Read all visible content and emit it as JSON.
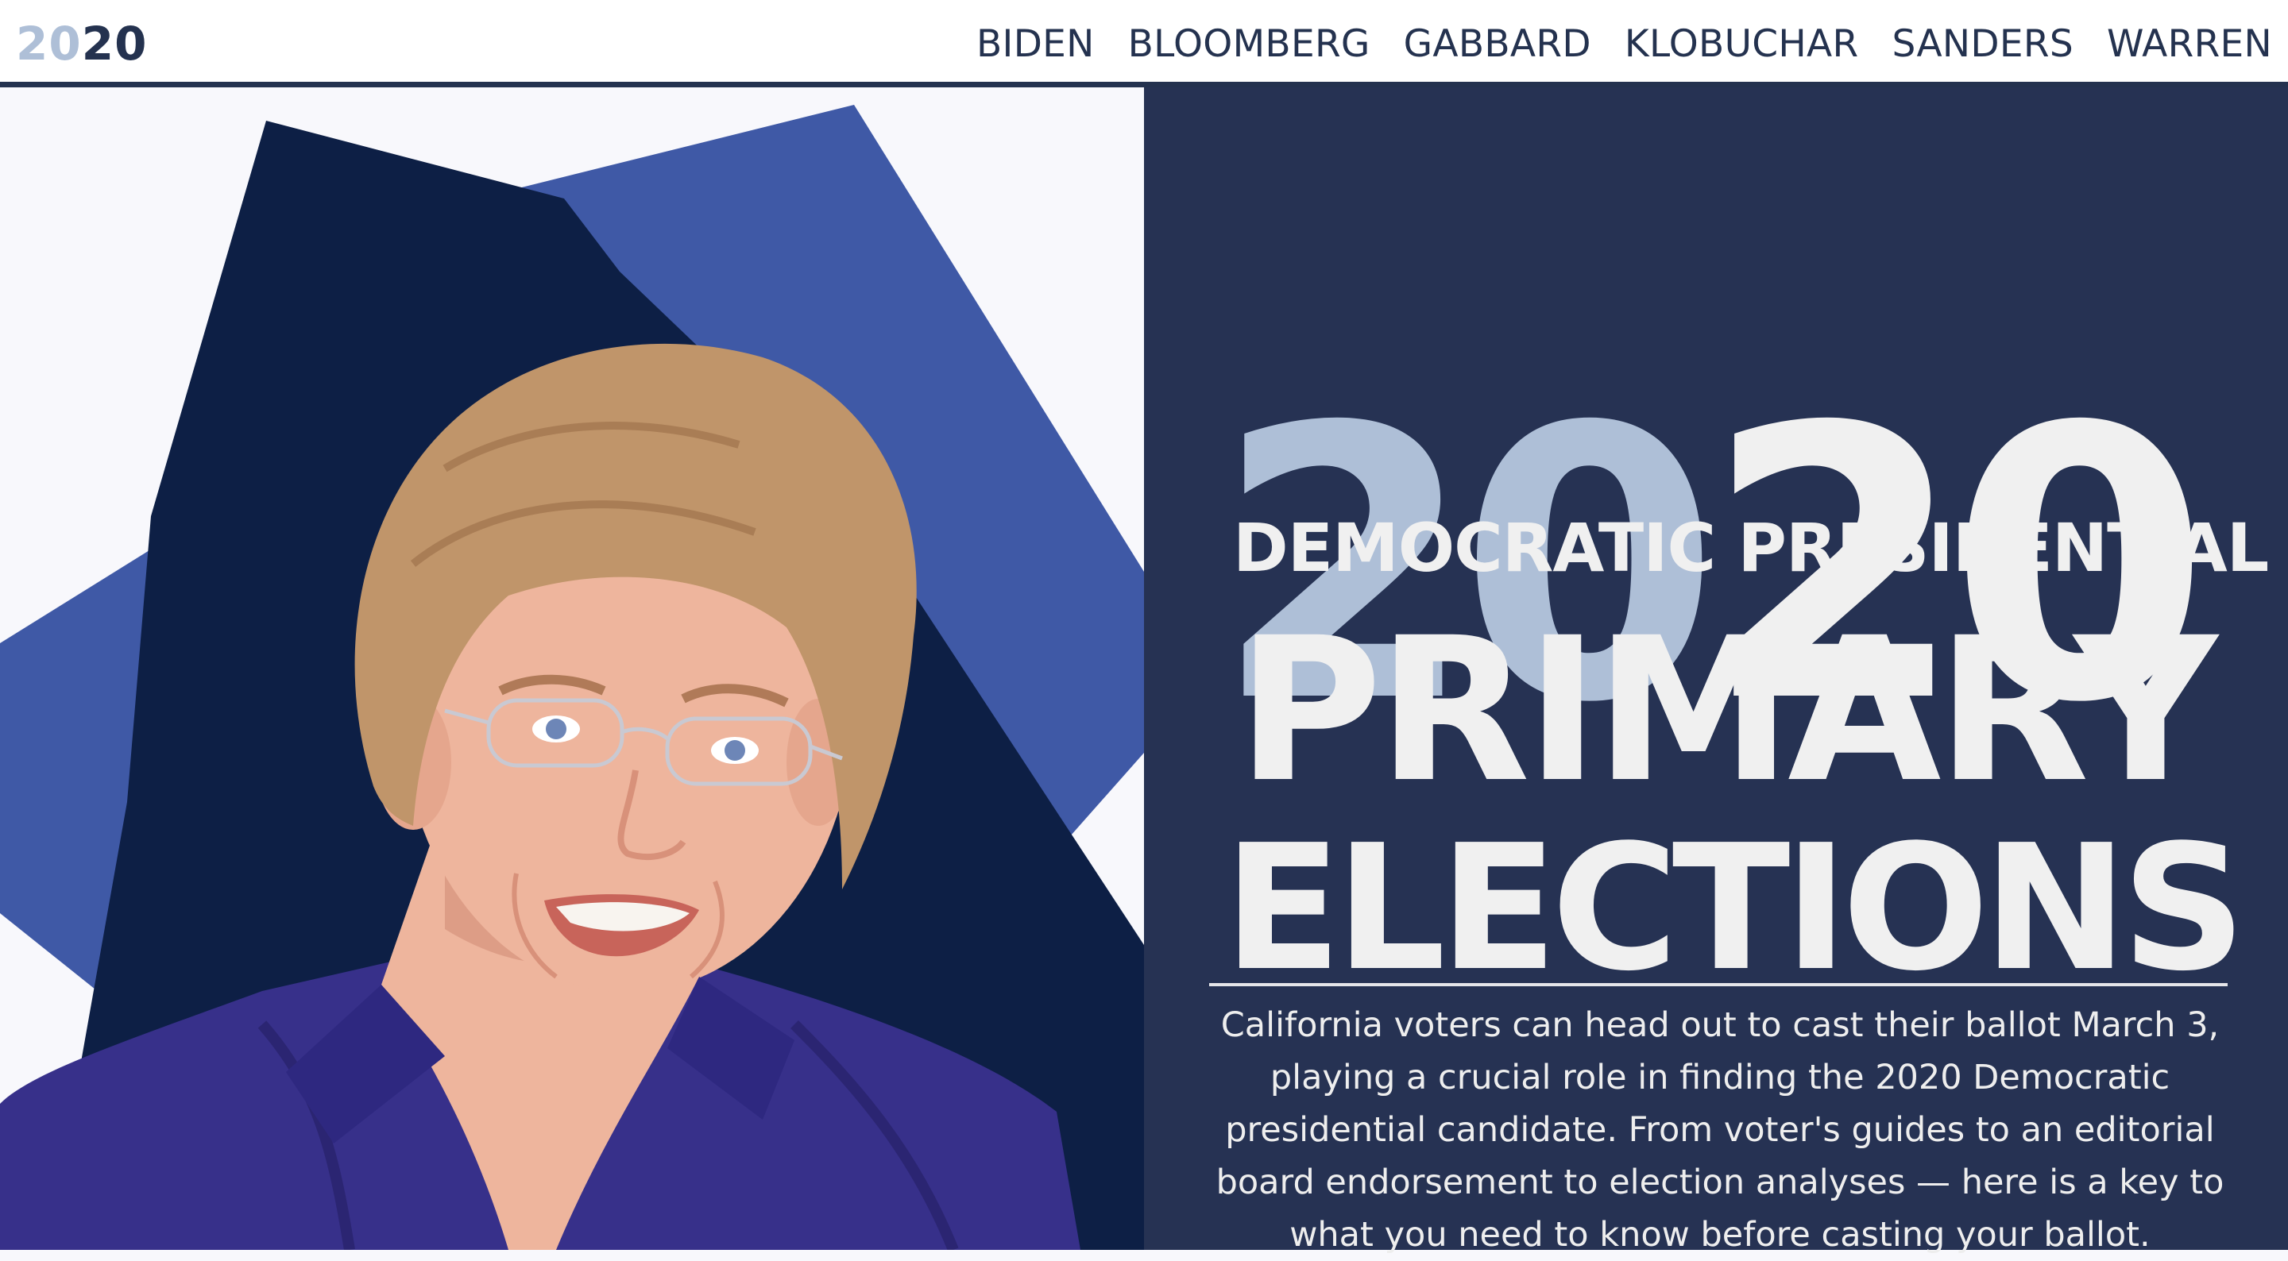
{
  "brand": {
    "logo_part1": "20",
    "logo_part2": "20"
  },
  "nav": {
    "items": [
      "BIDEN",
      "BLOOMBERG",
      "GABBARD",
      "KLOBUCHAR",
      "SANDERS",
      "WARREN"
    ]
  },
  "hero": {
    "year_part1": "20",
    "year_part2": "20",
    "subtitle": "DEMOCRATIC PRESIDENTIAL",
    "headline_line1": "PRIMARY",
    "headline_line2": "ELECTIONS",
    "intro": "California voters can head out to cast their ballot March 3, playing a crucial role in finding the 2020 Democratic presidential candidate. From voter's guides to an editorial board endorsement to election analyses — here is a key to what you need to know before casting your ballot."
  },
  "colors": {
    "navy": "#263253",
    "pale_blue": "#aebfd7",
    "off_white": "#f0f0f0",
    "shape_dark": "#0d1f45",
    "shape_blue": "#3f59a6",
    "jacket": "#37308a",
    "hair": "#c0956a",
    "skin": "#eeb59d"
  },
  "icons": {
    "illustration": "candidate-portrait-illustration"
  }
}
